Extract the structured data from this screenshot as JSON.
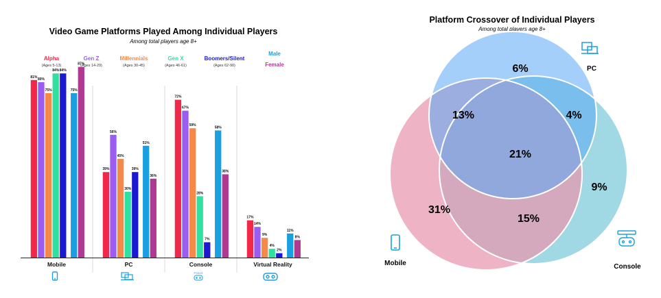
{
  "chart_data": [
    {
      "type": "bar",
      "title": "Video Game Platforms Played Among Individual Players",
      "subtitle": "Among total players age 8+",
      "categories": [
        "Mobile",
        "PC",
        "Console",
        "Virtual Reality"
      ],
      "series": [
        {
          "name": "Alpha",
          "ages": "(Ages 5-13)",
          "color": "#f0284a",
          "values": [
            81,
            39,
            72,
            17
          ]
        },
        {
          "name": "Gen Z",
          "ages": "(Ages 14-29)",
          "color": "#9b5cf0",
          "values": [
            80,
            56,
            67,
            14
          ]
        },
        {
          "name": "Millennials",
          "ages": "(Ages 30-45)",
          "color": "#f5894a",
          "values": [
            75,
            45,
            59,
            9
          ]
        },
        {
          "name": "Gen X",
          "ages": "(Ages 46-61)",
          "color": "#2fe0a0",
          "values": [
            84,
            30,
            28,
            4
          ]
        },
        {
          "name": "Boomers/Silent",
          "ages": "(Ages 62-90)",
          "color": "#1c1ad0",
          "values": [
            84,
            39,
            7,
            2
          ]
        },
        {
          "name": "Male",
          "ages": "",
          "color": "#1aa0e0",
          "values": [
            75,
            51,
            58,
            11
          ]
        },
        {
          "name": "Female",
          "ages": "",
          "color": "#b03a92",
          "values": [
            87,
            36,
            38,
            8
          ]
        }
      ],
      "value_suffix": "%",
      "ylim": [
        0,
        100
      ],
      "category_icons": [
        "phone-icon",
        "laptop-icon",
        "gamepad-icon",
        "vr-headset-icon"
      ],
      "console_icon_caption": "PS5XS"
    },
    {
      "type": "venn",
      "title": "Platform Crossover of Individual Players",
      "subtitle": "Among total players age 8+",
      "sets": [
        {
          "name": "PC",
          "color": "#5aa8f5",
          "icon": "laptop-icon"
        },
        {
          "name": "Mobile",
          "color": "#e896ae",
          "icon": "phone-icon"
        },
        {
          "name": "Console",
          "color": "#7ccbd8",
          "icon": "gamepad-icon"
        }
      ],
      "regions": [
        {
          "sets": [
            "PC"
          ],
          "value": "6%"
        },
        {
          "sets": [
            "Mobile",
            "PC"
          ],
          "value": "13%"
        },
        {
          "sets": [
            "PC",
            "Console"
          ],
          "value": "4%"
        },
        {
          "sets": [
            "Mobile",
            "PC",
            "Console"
          ],
          "value": "21%"
        },
        {
          "sets": [
            "Console"
          ],
          "value": "9%"
        },
        {
          "sets": [
            "Mobile"
          ],
          "value": "31%"
        },
        {
          "sets": [
            "Mobile",
            "Console"
          ],
          "value": "15%"
        }
      ]
    }
  ]
}
